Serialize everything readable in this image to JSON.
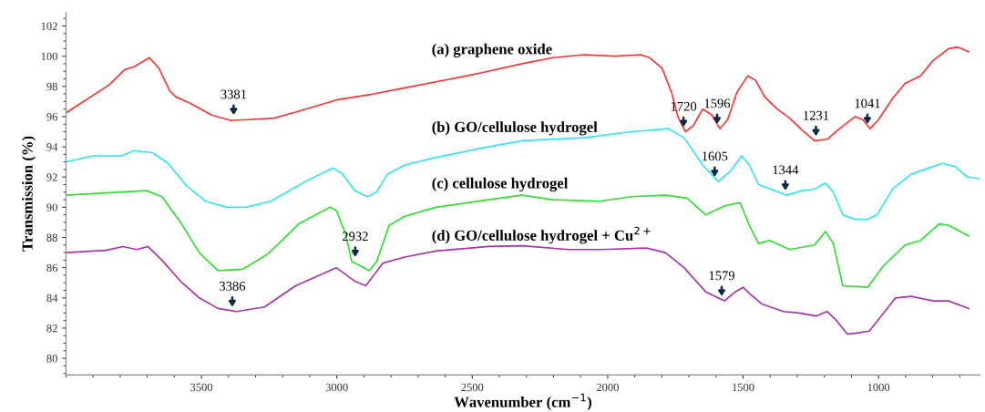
{
  "chart_data": {
    "type": "line",
    "xlabel": "Wavenumber (cm$^{−1}$)",
    "ylabel": "Transmission (%)",
    "xlim": [
      4000,
      625
    ],
    "ylim": [
      78.9,
      102.9
    ],
    "xticks": [
      3500,
      3000,
      2500,
      2000,
      1500,
      1000
    ],
    "yticks": [
      80,
      82,
      84,
      86,
      88,
      90,
      92,
      94,
      96,
      98,
      100,
      102
    ],
    "grid": false,
    "legend": false,
    "marker": "none",
    "line_style": "solid",
    "series": [
      {
        "name": "(a) graphene oxide",
        "color": "#ff3333",
        "x": [
          4000,
          3841,
          3784,
          3749,
          3692,
          3657,
          3617,
          3594,
          3543,
          3462,
          3393,
          3324,
          3232,
          3152,
          3002,
          2864,
          2749,
          2634,
          2519,
          2441,
          2316,
          2201,
          2086,
          1971,
          1879,
          1845,
          1799,
          1764,
          1741,
          1713,
          1684,
          1649,
          1615,
          1586,
          1557,
          1523,
          1483,
          1454,
          1420,
          1374,
          1328,
          1282,
          1236,
          1190,
          1144,
          1086,
          1058,
          1031,
          1000,
          948,
          902,
          845,
          799,
          741,
          707,
          667
        ],
        "values": [
          96.25,
          98.1,
          99.1,
          99.3,
          99.9,
          99.2,
          97.7,
          97.3,
          96.9,
          96.1,
          95.75,
          95.8,
          95.9,
          96.3,
          97.1,
          97.5,
          97.9,
          98.3,
          98.7,
          99.0,
          99.5,
          99.9,
          100.1,
          100.0,
          100.1,
          99.9,
          99.2,
          97.6,
          96.0,
          95.0,
          95.4,
          96.5,
          96.1,
          95.2,
          95.8,
          97.6,
          98.7,
          98.4,
          97.3,
          96.5,
          95.9,
          95.1,
          94.4,
          94.5,
          95.2,
          96.0,
          95.8,
          95.2,
          95.8,
          97.2,
          98.2,
          98.7,
          99.7,
          100.5,
          100.6,
          100.3
        ]
      },
      {
        "name": "(b) GO/cellulose hydrogel",
        "color": "#33e5f5",
        "x": [
          4000,
          3899,
          3795,
          3749,
          3680,
          3623,
          3554,
          3485,
          3405,
          3336,
          3244,
          3117,
          3014,
          2979,
          2933,
          2887,
          2853,
          2813,
          2749,
          2634,
          2441,
          2316,
          2086,
          1913,
          1775,
          1718,
          1649,
          1592,
          1546,
          1506,
          1477,
          1443,
          1397,
          1339,
          1282,
          1236,
          1196,
          1167,
          1132,
          1086,
          1040,
          1006,
          948,
          879,
          764,
          718,
          672,
          629
        ],
        "values": [
          93.0,
          93.4,
          93.4,
          93.75,
          93.6,
          92.9,
          91.4,
          90.4,
          90.0,
          90.0,
          90.4,
          91.7,
          92.6,
          92.2,
          91.1,
          90.7,
          91.0,
          92.2,
          92.8,
          93.3,
          94.0,
          94.4,
          94.6,
          95.0,
          95.2,
          94.6,
          92.8,
          91.7,
          92.4,
          93.4,
          92.8,
          91.5,
          91.2,
          90.8,
          91.1,
          91.2,
          91.6,
          91.0,
          89.5,
          89.2,
          89.2,
          89.5,
          91.2,
          92.2,
          92.9,
          92.7,
          92.0,
          91.9
        ]
      },
      {
        "name": "(c) cellulose hydrogel",
        "color": "#33dd33",
        "x": [
          4000,
          3703,
          3646,
          3577,
          3508,
          3439,
          3347,
          3255,
          3140,
          3025,
          3002,
          2967,
          2945,
          2910,
          2881,
          2853,
          2807,
          2749,
          2634,
          2441,
          2316,
          2201,
          2029,
          1913,
          1787,
          1707,
          1638,
          1569,
          1511,
          1477,
          1443,
          1402,
          1328,
          1236,
          1196,
          1167,
          1132,
          1040,
          983,
          902,
          845,
          776,
          741,
          667
        ],
        "values": [
          90.8,
          91.1,
          90.7,
          89.0,
          87.0,
          85.8,
          85.9,
          86.9,
          88.9,
          90.0,
          89.8,
          88.2,
          86.4,
          86.1,
          85.8,
          86.4,
          88.8,
          89.4,
          90.0,
          90.5,
          90.8,
          90.5,
          90.4,
          90.7,
          90.8,
          90.6,
          89.5,
          90.1,
          90.3,
          88.8,
          87.6,
          87.8,
          87.2,
          87.5,
          88.4,
          87.6,
          84.8,
          84.7,
          86.1,
          87.5,
          87.8,
          88.9,
          88.8,
          88.1
        ]
      },
      {
        "name": "(d) GO/cellulose hydrogel + Cu$^{2+}$",
        "color": "#aa33aa",
        "x": [
          4000,
          3853,
          3790,
          3738,
          3698,
          3646,
          3577,
          3508,
          3439,
          3370,
          3267,
          3152,
          3002,
          2933,
          2893,
          2830,
          2749,
          2634,
          2441,
          2316,
          2144,
          2029,
          1856,
          1787,
          1718,
          1638,
          1569,
          1529,
          1500,
          1471,
          1431,
          1351,
          1293,
          1230,
          1190,
          1155,
          1115,
          1069,
          1034,
          994,
          937,
          879,
          799,
          741,
          667
        ],
        "values": [
          87.0,
          87.15,
          87.4,
          87.2,
          87.4,
          86.5,
          85.1,
          84.0,
          83.3,
          83.1,
          83.4,
          84.8,
          86.0,
          85.1,
          84.8,
          86.3,
          86.7,
          87.1,
          87.4,
          87.45,
          87.2,
          87.2,
          87.3,
          87.0,
          86.0,
          84.4,
          83.8,
          84.4,
          84.7,
          84.2,
          83.6,
          83.1,
          83.0,
          82.8,
          83.1,
          82.5,
          81.6,
          81.7,
          81.8,
          82.7,
          84.0,
          84.1,
          83.8,
          83.8,
          83.3
        ]
      }
    ],
    "annotations": [
      {
        "text": "3381",
        "x": 3381,
        "y": 95.8
      },
      {
        "text": "1720",
        "x": 1720,
        "y": 95.0
      },
      {
        "text": "1596",
        "x": 1596,
        "y": 95.2
      },
      {
        "text": "1231",
        "x": 1231,
        "y": 94.4
      },
      {
        "text": "1041",
        "x": 1041,
        "y": 95.2
      },
      {
        "text": "1605",
        "x": 1605,
        "y": 91.7
      },
      {
        "text": "1344",
        "x": 1344,
        "y": 90.8
      },
      {
        "text": "2932",
        "x": 2932,
        "y": 86.4
      },
      {
        "text": "3386",
        "x": 3386,
        "y": 83.1
      },
      {
        "text": "1579",
        "x": 1579,
        "y": 83.8
      }
    ]
  }
}
